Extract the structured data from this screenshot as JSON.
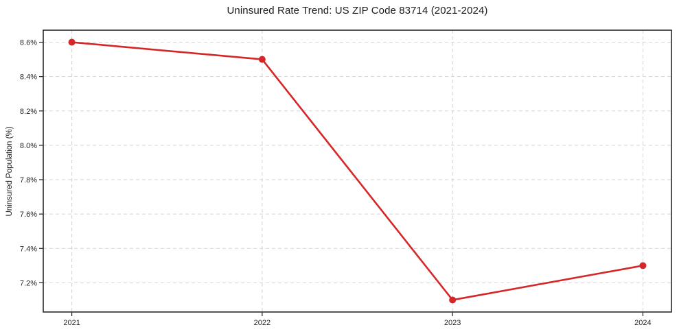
{
  "figure": {
    "background": "#ffffff"
  },
  "chart_data": {
    "type": "line",
    "title": "Uninsured Rate Trend: US ZIP Code 83714 (2021-2024)",
    "xlabel": "",
    "ylabel": "Uninsured Population (%)",
    "x": [
      2021,
      2022,
      2023,
      2024
    ],
    "series": [
      {
        "name": "Uninsured Rate",
        "values": [
          8.6,
          8.5,
          7.1,
          7.3
        ],
        "color": "#d62728",
        "marker": "circle",
        "marker_radius": 5,
        "line_width": 2.6
      }
    ],
    "xtick_values": [
      2021,
      2022,
      2023,
      2024
    ],
    "xtick_labels": [
      "2021",
      "2022",
      "2023",
      "2024"
    ],
    "ytick_values": [
      7.2,
      7.4,
      7.6,
      7.8,
      8.0,
      8.2,
      8.4,
      8.6
    ],
    "ytick_labels": [
      "7.2%",
      "7.4%",
      "7.6%",
      "7.8%",
      "8.0%",
      "8.2%",
      "8.4%",
      "8.6%"
    ],
    "xlim": [
      2020.85,
      2024.15
    ],
    "ylim": [
      7.03,
      8.67
    ],
    "grid": true,
    "grid_style": "dashed",
    "grid_color": "#d3d3d3",
    "axis_color": "#1a1a1a",
    "tick_label_color": "#262626",
    "legend": "none"
  }
}
